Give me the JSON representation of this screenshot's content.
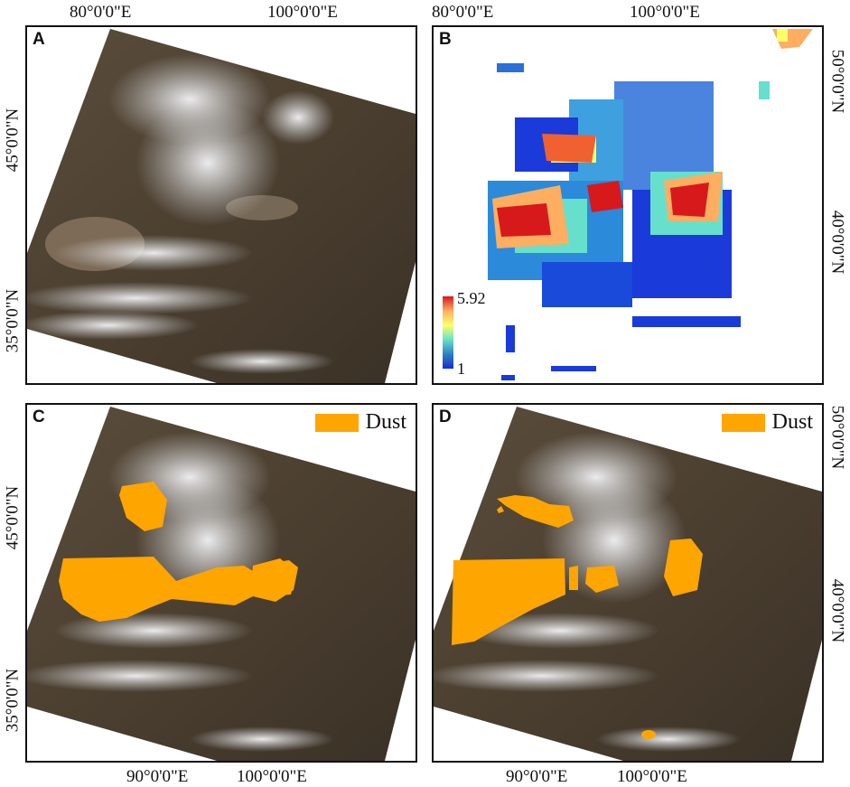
{
  "ticks": {
    "top_left_1": "80°0'0\"E",
    "top_left_2": "100°0'0\"E",
    "top_right_1": "80°0'0\"E",
    "top_right_2": "100°0'0\"E",
    "bottom_left_1": "90°0'0\"E",
    "bottom_left_2": "100°0'0\"E",
    "bottom_right_1": "90°0'0\"E",
    "bottom_right_2": "100°0'0\"E",
    "lat_a_1": "45°0'0\"N",
    "lat_a_2": "35°0'0\"N",
    "lat_b_1": "50°0'0\"N",
    "lat_b_2": "40°0'0\"N",
    "lat_c_1": "45°0'0\"N",
    "lat_c_2": "35°0'0\"N",
    "lat_d_1": "50°0'0\"N",
    "lat_d_2": "40°0'0\"N"
  },
  "panels": {
    "a": {
      "label": "A"
    },
    "b": {
      "label": "B",
      "colorbar_max": "5.92",
      "colorbar_min": "1"
    },
    "c": {
      "label": "C",
      "legend": "Dust"
    },
    "d": {
      "label": "D",
      "legend": "Dust"
    }
  },
  "colors": {
    "dust": "#FFA500",
    "terrain": "#4a3e30",
    "cloud": "#e8e8ea"
  }
}
